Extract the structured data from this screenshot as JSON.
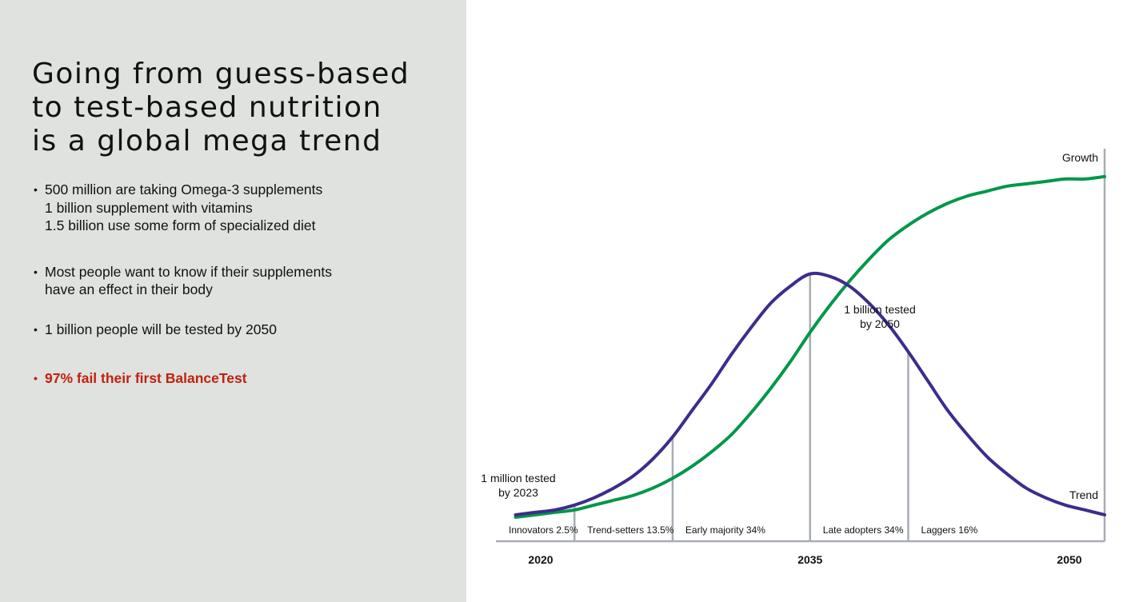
{
  "headline": {
    "lines": [
      "Going from guess-based",
      "to test-based nutrition",
      "is a global mega trend"
    ]
  },
  "bullets": [
    {
      "lines": [
        "500 million are taking Omega-3 supplements",
        "1 billion supplement with vitamins",
        "1.5 billion use some form of specialized diet"
      ],
      "highlight": false
    },
    {
      "lines": [
        "Most people want to know if their supplements",
        "have an effect in their body"
      ],
      "highlight": false
    },
    {
      "lines": [
        "1 billion people will be tested by 2050"
      ],
      "highlight": false
    },
    {
      "lines": [
        "97% fail their first BalanceTest"
      ],
      "highlight": true
    }
  ],
  "bullet_symbol": "•",
  "colors": {
    "left_panel_bg": "#dfe2df",
    "highlight": "#c0220e",
    "trend_line": "#3f2b8c",
    "growth_line": "#00974a",
    "divider": "#a7adb5"
  },
  "chart_data": {
    "type": "line",
    "title": "",
    "x": [
      2020,
      2021,
      2022,
      2023,
      2024,
      2025,
      2026,
      2027,
      2028,
      2029,
      2030,
      2031,
      2032,
      2033,
      2034,
      2035,
      2036,
      2037,
      2038,
      2039,
      2040,
      2041,
      2042,
      2043,
      2044,
      2045,
      2046,
      2047,
      2048,
      2049,
      2050
    ],
    "series": [
      {
        "name": "Trend",
        "values": [
          1,
          2,
          3,
          5,
          8,
          12,
          17,
          24,
          33,
          44,
          55,
          67,
          78,
          88,
          95,
          100,
          99,
          95,
          88,
          79,
          68,
          56,
          44,
          34,
          25,
          18,
          12,
          8,
          5,
          3,
          1
        ]
      },
      {
        "name": "Growth",
        "values": [
          0,
          1,
          2,
          3,
          5,
          7,
          9,
          12,
          16,
          21,
          27,
          34,
          43,
          53,
          64,
          76,
          87,
          97,
          106,
          114,
          120,
          125,
          129,
          132,
          134,
          136,
          137,
          138,
          139,
          139,
          140
        ]
      }
    ],
    "ylim": [
      0,
      160
    ],
    "xlim": [
      2019,
      2050
    ],
    "xticks": [
      2020,
      2035,
      2050
    ],
    "segments": [
      {
        "label": "Innovators 2.5%",
        "end": 2023
      },
      {
        "label": "Trend-setters 13.5%",
        "end": 2028
      },
      {
        "label": "Early majority 34%",
        "end": 2035
      },
      {
        "label": "Late adopters 34%",
        "end": 2040
      },
      {
        "label": "Laggers 16%",
        "end": 2050
      }
    ],
    "annotations": [
      {
        "lines": [
          "1 million tested",
          "by 2023"
        ],
        "x": 2023
      },
      {
        "lines": [
          "1 billion tested",
          "by 2050"
        ],
        "x": 2035
      }
    ],
    "series_labels": {
      "growth": "Growth",
      "trend": "Trend"
    },
    "grid": false,
    "legend": "none"
  }
}
